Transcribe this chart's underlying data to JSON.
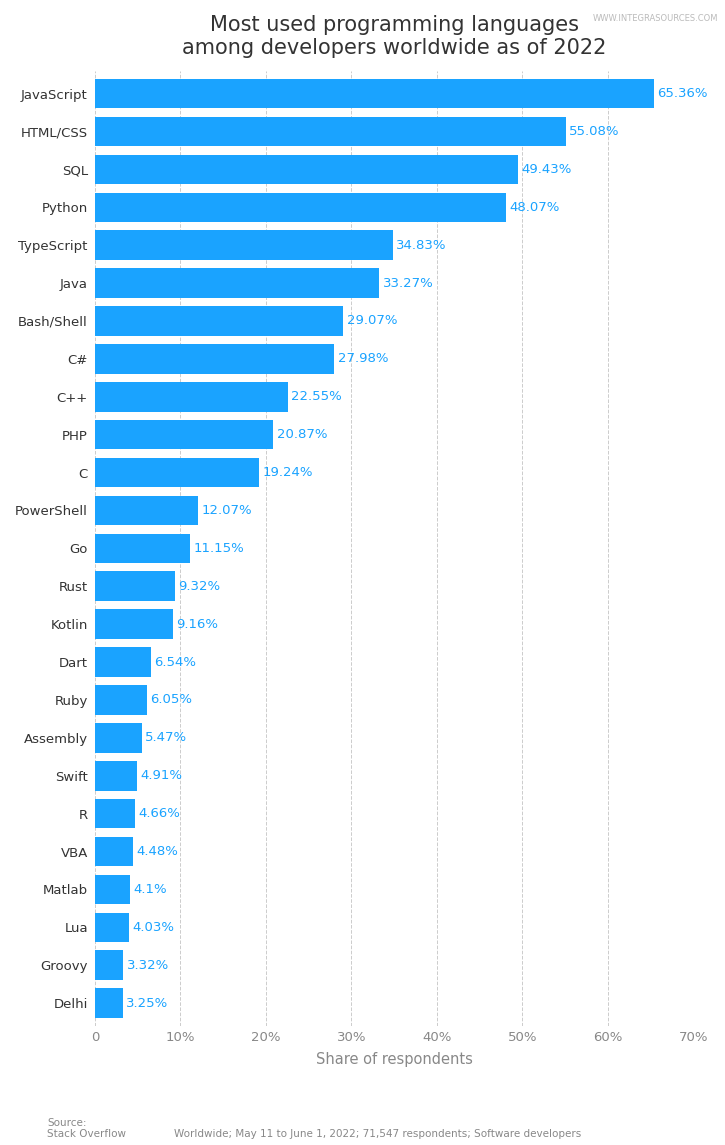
{
  "title": "Most used programming languages\namong developers worldwide as of 2022",
  "watermark": "WWW.INTEGRASOURCES.COM",
  "languages": [
    "JavaScript",
    "HTML/CSS",
    "SQL",
    "Python",
    "TypeScript",
    "Java",
    "Bash/Shell",
    "C#",
    "C++",
    "PHP",
    "C",
    "PowerShell",
    "Go",
    "Rust",
    "Kotlin",
    "Dart",
    "Ruby",
    "Assembly",
    "Swift",
    "R",
    "VBA",
    "Matlab",
    "Lua",
    "Groovy",
    "Delhi"
  ],
  "values": [
    65.36,
    55.08,
    49.43,
    48.07,
    34.83,
    33.27,
    29.07,
    27.98,
    22.55,
    20.87,
    19.24,
    12.07,
    11.15,
    9.32,
    9.16,
    6.54,
    6.05,
    5.47,
    4.91,
    4.66,
    4.48,
    4.1,
    4.03,
    3.32,
    3.25
  ],
  "bar_color": "#1aa3ff",
  "label_color": "#1aa3ff",
  "title_color": "#333333",
  "tick_color": "#888888",
  "xlabel": "Share of respondents",
  "source_left": "Source:\nStack Overflow",
  "source_right": "Worldwide; May 11 to June 1, 2022; 71,547 respondents; Software developers",
  "xlim": [
    0,
    70
  ],
  "xticks": [
    0,
    10,
    20,
    30,
    40,
    50,
    60,
    70
  ],
  "xtick_labels": [
    "0",
    "10%",
    "20%",
    "30%",
    "40%",
    "50%",
    "60%",
    "70%"
  ],
  "background_color": "#ffffff",
  "title_fontsize": 15,
  "label_fontsize": 9.5,
  "tick_fontsize": 9.5,
  "xlabel_fontsize": 10.5,
  "bar_height": 0.78
}
